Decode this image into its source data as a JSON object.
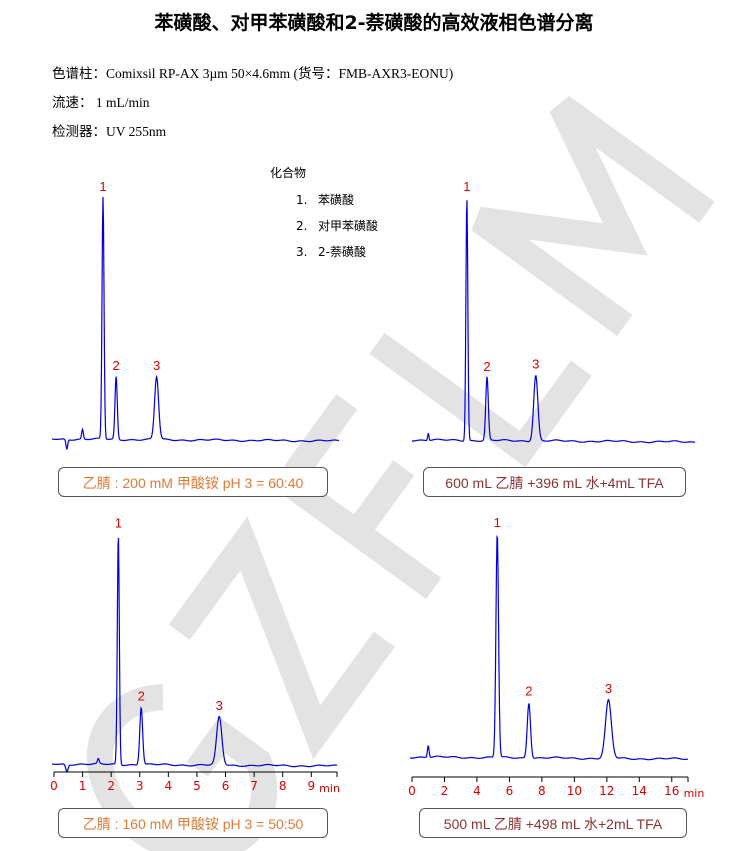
{
  "title": "苯磺酸、对甲苯磺酸和2-萘磺酸的高效液相色谱分离",
  "conditions": {
    "column": "色谱柱：Comixsil RP-AX 3µm 50×4.6mm (货号：FMB-AXR3-EONU)",
    "flow": "流速： 1 mL/min",
    "detector": "检测器：UV 255nm"
  },
  "legend": {
    "heading": "化合物",
    "items": [
      {
        "num": "1.",
        "name": "苯磺酸"
      },
      {
        "num": "2.",
        "name": "对甲苯磺酸"
      },
      {
        "num": "3.",
        "name": "2-萘磺酸"
      }
    ]
  },
  "watermark": "GZFLM",
  "colors": {
    "trace": "#0000dd",
    "peak_label": "#dd0000",
    "axis_label": "#dd0000",
    "mobile_phase_orange": "#e07b39",
    "mobile_phase_brown": "#8b3333"
  },
  "chart_data": [
    {
      "type": "line",
      "mobile_phase": "乙腈 : 200 mM 甲酸铵 pH 3 = 60:40",
      "mobile_phase_color": "orange",
      "xlim": [
        0,
        10
      ],
      "axis_shown": false,
      "peaks": [
        {
          "label": "1",
          "rt": 1.72,
          "height": 1.0,
          "width": 0.035
        },
        {
          "label": "2",
          "rt": 2.18,
          "height": 0.26,
          "width": 0.04
        },
        {
          "label": "3",
          "rt": 3.6,
          "height": 0.26,
          "width": 0.07
        }
      ],
      "minor_peaks": [
        {
          "rt": 1.0,
          "height": 0.04,
          "width": 0.03
        },
        {
          "rt": 0.45,
          "height": -0.04,
          "width": 0.03
        }
      ]
    },
    {
      "type": "line",
      "mobile_phase": "600 mL 乙腈 +396 mL 水+4mL TFA",
      "mobile_phase_color": "brown",
      "xlim": [
        0,
        17.7
      ],
      "axis_shown": false,
      "peaks": [
        {
          "label": "1",
          "rt": 3.33,
          "height": 1.0,
          "width": 0.06
        },
        {
          "label": "2",
          "rt": 4.6,
          "height": 0.26,
          "width": 0.08
        },
        {
          "label": "3",
          "rt": 7.67,
          "height": 0.27,
          "width": 0.13
        }
      ],
      "minor_peaks": [
        {
          "rt": 0.9,
          "height": 0.03,
          "width": 0.04
        }
      ]
    },
    {
      "type": "line",
      "mobile_phase": "乙腈 : 160 mM 甲酸铵 pH 3 = 50:50",
      "mobile_phase_color": "orange",
      "xlim": [
        0,
        9.9
      ],
      "axis_shown": true,
      "xunit": "min",
      "xticks": [
        "0",
        "1",
        "2",
        "3",
        "4",
        "5",
        "6",
        "7",
        "8",
        "9"
      ],
      "peaks": [
        {
          "label": "1",
          "rt": 2.25,
          "height": 0.96,
          "width": 0.035
        },
        {
          "label": "2",
          "rt": 3.05,
          "height": 0.24,
          "width": 0.05
        },
        {
          "label": "3",
          "rt": 5.78,
          "height": 0.2,
          "width": 0.09
        }
      ],
      "minor_peaks": [
        {
          "rt": 1.55,
          "height": 0.02,
          "width": 0.03
        },
        {
          "rt": 0.45,
          "height": -0.03,
          "width": 0.04
        }
      ]
    },
    {
      "type": "line",
      "mobile_phase": "500 mL 乙腈 +498 mL 水+2mL TFA",
      "mobile_phase_color": "brown",
      "xlim": [
        0,
        17.0
      ],
      "axis_shown": true,
      "xunit": "min",
      "xticks": [
        "0",
        "2",
        "4",
        "6",
        "8",
        "10",
        "12",
        "14",
        "16"
      ],
      "peaks": [
        {
          "label": "1",
          "rt": 5.25,
          "height": 0.93,
          "width": 0.08
        },
        {
          "label": "2",
          "rt": 7.2,
          "height": 0.23,
          "width": 0.1
        },
        {
          "label": "3",
          "rt": 12.1,
          "height": 0.24,
          "width": 0.18
        }
      ],
      "minor_peaks": [
        {
          "rt": 1.0,
          "height": 0.05,
          "width": 0.05
        }
      ]
    }
  ]
}
